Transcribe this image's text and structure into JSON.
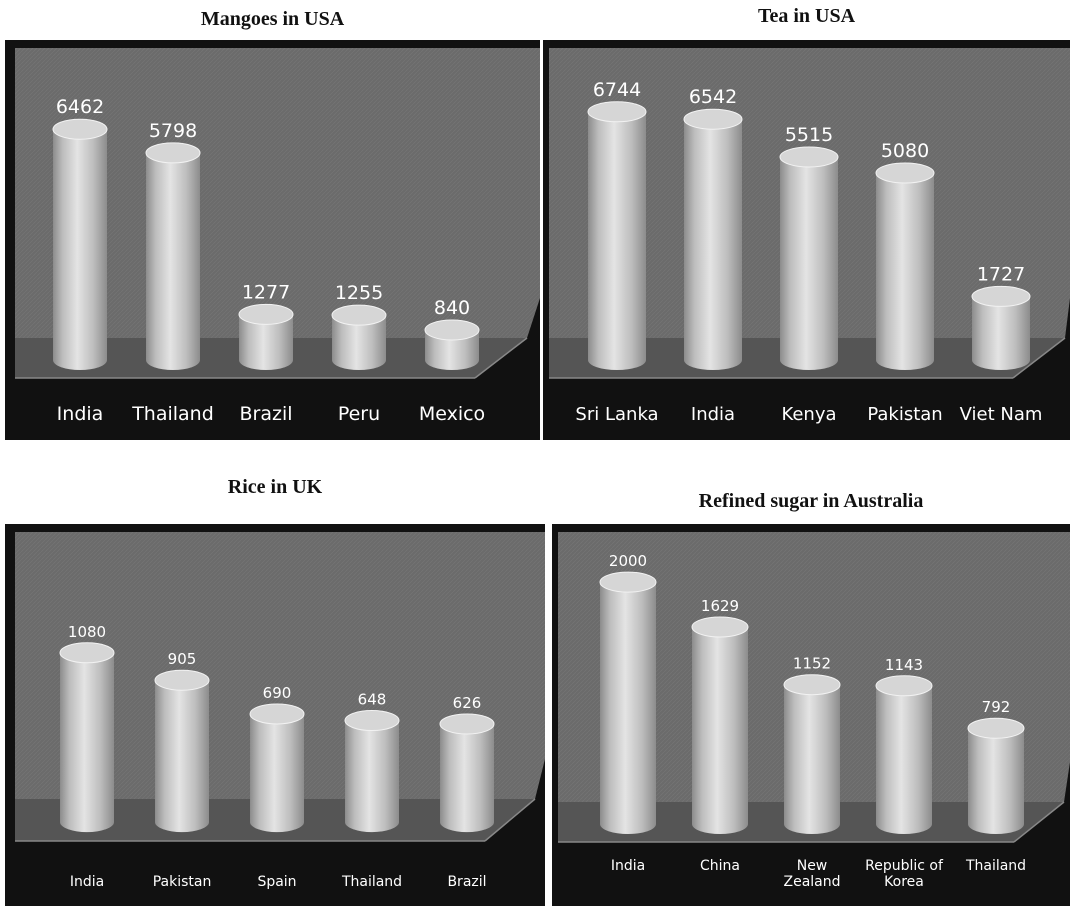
{
  "chart_data": [
    {
      "type": "bar",
      "title": "Mangoes in USA",
      "categories": [
        "India",
        "Thailand",
        "Brazil",
        "Peru",
        "Mexico"
      ],
      "values": [
        6462,
        5798,
        1277,
        1255,
        840
      ],
      "data_labels": [
        "6462",
        "5798",
        "1277",
        "1255",
        "840"
      ],
      "ylim": [
        0,
        7000
      ],
      "grid": false,
      "legend": "none"
    },
    {
      "type": "bar",
      "title": "Tea in USA",
      "categories": [
        "Sri Lanka",
        "India",
        "Kenya",
        "Pakistan",
        "Viet Nam"
      ],
      "values": [
        6744,
        6542,
        5515,
        5080,
        1727
      ],
      "data_labels": [
        "6744",
        "6542",
        "5515",
        "5080",
        "1727"
      ],
      "ylim": [
        0,
        7200
      ],
      "grid": false,
      "legend": "none"
    },
    {
      "type": "bar",
      "title": "Rice in UK",
      "categories": [
        "India",
        "Pakistan",
        "Spain",
        "Thailand",
        "Brazil"
      ],
      "values": [
        1080,
        905,
        690,
        648,
        626
      ],
      "data_labels": [
        "1080",
        "905",
        "690",
        "648",
        "626"
      ],
      "ylim": [
        0,
        1200
      ],
      "grid": false,
      "legend": "none"
    },
    {
      "type": "bar",
      "title": "Refined sugar in Australia",
      "categories": [
        "India",
        "China",
        "New Zealand",
        "Republic of Korea",
        "Thailand"
      ],
      "values": [
        2000,
        1629,
        1152,
        1143,
        792
      ],
      "data_labels": [
        "2000",
        "1629",
        "1152",
        "1143",
        "792"
      ],
      "ylim": [
        0,
        2150
      ],
      "grid": false,
      "legend": "none"
    }
  ],
  "colors": {
    "frame": "#111111",
    "wall": "#6b6b6b",
    "floor": "#555555",
    "bar_light": "#e4e4e4",
    "bar_mid": "#bdbdbd",
    "bar_dark": "#8c8c8c",
    "text": "#ffffff"
  }
}
